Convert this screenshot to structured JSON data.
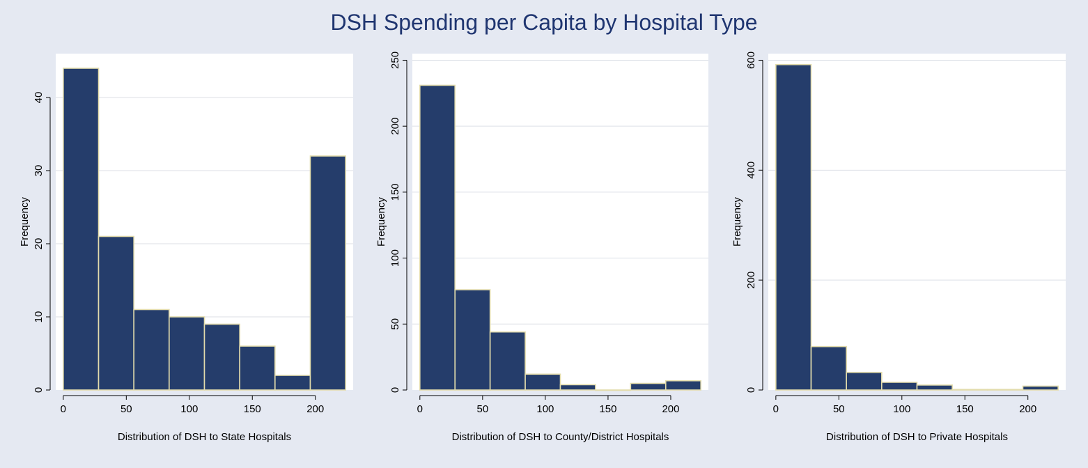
{
  "figure": {
    "title": "DSH Spending per Capita by Hospital Type"
  },
  "colors": {
    "background": "#e5e9f2",
    "plot_bg": "#ffffff",
    "bar_fill": "#253d6b",
    "bar_edge": "#e3dcac",
    "grid": "#dcdfe6",
    "title": "#1f3570"
  },
  "chart_data": [
    {
      "type": "bar",
      "xlabel": "Distribution of DSH to State Hospitals",
      "ylabel": "Frequency",
      "bin_edges": [
        0,
        28,
        56,
        84,
        112,
        140,
        168,
        196,
        224
      ],
      "values": [
        44,
        21,
        11,
        10,
        9,
        6,
        2,
        32
      ],
      "xlim": [
        -6,
        230
      ],
      "ylim": [
        0,
        46
      ],
      "xticks": [
        0,
        50,
        100,
        150,
        200
      ],
      "yticks": [
        0,
        10,
        20,
        30,
        40
      ],
      "grid": true
    },
    {
      "type": "bar",
      "xlabel": "Distribution of DSH to County/District Hospitals",
      "ylabel": "Frequency",
      "bin_edges": [
        0,
        28,
        56,
        84,
        112,
        140,
        168,
        196,
        224
      ],
      "values": [
        231,
        76,
        44,
        12,
        4,
        0,
        5,
        7
      ],
      "xlim": [
        -6,
        230
      ],
      "ylim": [
        0,
        255
      ],
      "xticks": [
        0,
        50,
        100,
        150,
        200
      ],
      "yticks": [
        0,
        50,
        100,
        150,
        200,
        250
      ],
      "grid": true
    },
    {
      "type": "bar",
      "xlabel": "Distribution of DSH to Private Hospitals",
      "ylabel": "Frequency",
      "bin_edges": [
        0,
        28,
        56,
        84,
        112,
        140,
        168,
        196,
        224
      ],
      "values": [
        592,
        79,
        32,
        14,
        9,
        1,
        1,
        7
      ],
      "xlim": [
        -6,
        230
      ],
      "ylim": [
        0,
        612
      ],
      "xticks": [
        0,
        50,
        100,
        150,
        200
      ],
      "yticks": [
        0,
        200,
        400,
        600
      ],
      "grid": true
    }
  ]
}
